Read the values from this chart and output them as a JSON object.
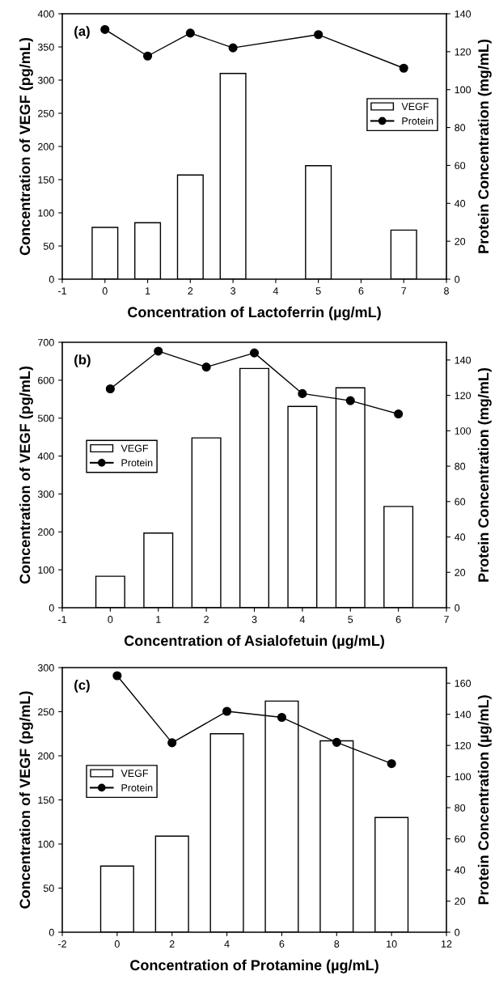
{
  "chart_data": [
    {
      "type": "bar",
      "annotations": [
        "(a)"
      ],
      "xlabel": "Concentration of Lactoferrin (µg/mL)",
      "ylabel": "Concentration of VEGF (pg/mL)",
      "y2label": "Protein Concentration (mg/mL)",
      "x": [
        0,
        1,
        2,
        3,
        5,
        7
      ],
      "series": [
        {
          "name": "VEGF",
          "color": "#ffffff",
          "values": [
            78,
            85,
            157,
            310,
            171,
            74
          ]
        },
        {
          "name": "Protein",
          "type": "line",
          "axis": "y2",
          "color": "#000000",
          "marker": "circle",
          "line_style": "solid",
          "values": [
            131.7,
            117.7,
            129.8,
            122,
            129,
            111.3
          ]
        }
      ],
      "xlim": [
        -1,
        8
      ],
      "xticks": [
        -1,
        0,
        1,
        2,
        3,
        4,
        5,
        6,
        7,
        8
      ],
      "ylim": [
        0,
        400
      ],
      "yticks": [
        0,
        50,
        100,
        150,
        200,
        250,
        300,
        350,
        400
      ],
      "y2lim": [
        0,
        140
      ],
      "y2ticks": [
        0,
        20,
        40,
        60,
        80,
        100,
        120,
        140
      ],
      "legend": "right",
      "grid": false
    },
    {
      "type": "bar",
      "annotations": [
        "(b)"
      ],
      "xlabel": "Concentration of Asialofetuin (µg/mL)",
      "ylabel": "Concentration of VEGF (pg/mL)",
      "y2label": "Protein Concentration (mg/mL)",
      "x": [
        0,
        1,
        2,
        3,
        4,
        5,
        6
      ],
      "series": [
        {
          "name": "VEGF",
          "color": "#ffffff",
          "values": [
            83,
            197,
            448,
            631,
            531,
            580,
            267
          ]
        },
        {
          "name": "Protein",
          "type": "line",
          "axis": "y2",
          "color": "#000000",
          "marker": "circle",
          "line_style": "solid",
          "values": [
            123.7,
            145,
            136,
            144,
            121,
            117,
            109.5
          ]
        }
      ],
      "xlim": [
        -1,
        7
      ],
      "xticks": [
        -1,
        0,
        1,
        2,
        3,
        4,
        5,
        6,
        7
      ],
      "ylim": [
        0,
        700
      ],
      "yticks": [
        0,
        100,
        200,
        300,
        400,
        500,
        600,
        700
      ],
      "y2lim": [
        0,
        150
      ],
      "y2ticks": [
        0,
        20,
        40,
        60,
        80,
        100,
        120,
        140
      ],
      "legend": "left",
      "grid": false
    },
    {
      "type": "bar",
      "annotations": [
        "(c)"
      ],
      "xlabel": "Concentration of Protamine (µg/mL)",
      "ylabel": "Concentration of VEGF (pg/mL)",
      "y2label": "Protein Concentration (µg/mL)",
      "x": [
        0,
        2,
        4,
        6,
        8,
        10
      ],
      "series": [
        {
          "name": "VEGF",
          "color": "#ffffff",
          "values": [
            75,
            109,
            225,
            262,
            217,
            130
          ]
        },
        {
          "name": "Protein",
          "type": "line",
          "axis": "y2",
          "color": "#000000",
          "marker": "circle",
          "line_style": "solid",
          "values": [
            164.8,
            121.7,
            141.9,
            138,
            122,
            108.3
          ]
        }
      ],
      "xlim": [
        -2,
        12
      ],
      "xticks": [
        -2,
        0,
        2,
        4,
        6,
        8,
        10,
        12
      ],
      "ylim": [
        0,
        300
      ],
      "yticks": [
        0,
        50,
        100,
        150,
        200,
        250,
        300
      ],
      "y2lim": [
        0,
        170
      ],
      "y2ticks": [
        0,
        20,
        40,
        60,
        80,
        100,
        120,
        140,
        160
      ],
      "legend": "left",
      "grid": false
    }
  ]
}
